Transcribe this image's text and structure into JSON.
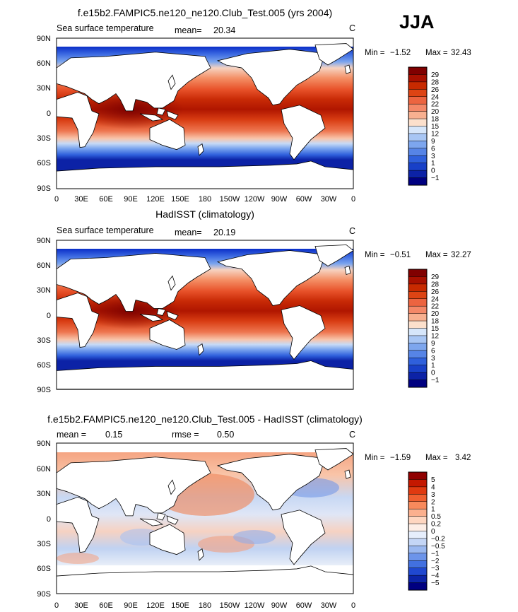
{
  "season": "JJA",
  "chart_data": [
    {
      "type": "heatmap",
      "title": "f.e15b2.FAMPIC5.ne120_ne120.Club_Test.005 (yrs 2004)",
      "left_label": "Sea surface temperature",
      "stat1_label": "mean=",
      "stat1_value": "20.34",
      "stat2_label": "",
      "stat2_value": "",
      "units": "C",
      "min_label": "Min =",
      "min_value": "−1.52",
      "max_label": "Max =",
      "max_value": "32.43",
      "x_ticks": [
        "0",
        "30E",
        "60E",
        "90E",
        "120E",
        "150E",
        "180",
        "150W",
        "120W",
        "90W",
        "60W",
        "30W",
        "0"
      ],
      "y_ticks": [
        "90N",
        "60N",
        "30N",
        "0",
        "30S",
        "60S",
        "90S"
      ],
      "colorbar_levels": [
        "29",
        "28",
        "26",
        "24",
        "22",
        "20",
        "18",
        "15",
        "12",
        "9",
        "6",
        "3",
        "1",
        "0",
        "−1"
      ],
      "colorbar_colors": [
        "#800000",
        "#a81000",
        "#c82a00",
        "#dd4414",
        "#ec6440",
        "#f48868",
        "#f8b090",
        "#fce0cc",
        "#d6e6fa",
        "#a8c6f4",
        "#7da6ee",
        "#5684e6",
        "#2f60dc",
        "#1840c8",
        "#0c22a6",
        "#000080"
      ]
    },
    {
      "type": "heatmap",
      "title": "HadISST (climatology)",
      "left_label": "Sea surface temperature",
      "stat1_label": "mean=",
      "stat1_value": "20.19",
      "stat2_label": "",
      "stat2_value": "",
      "units": "C",
      "min_label": "Min =",
      "min_value": "−0.51",
      "max_label": "Max =",
      "max_value": "32.27",
      "x_ticks": [],
      "y_ticks": [
        "90N",
        "60N",
        "30N",
        "0",
        "30S",
        "60S",
        "90S"
      ],
      "colorbar_levels": [
        "29",
        "28",
        "26",
        "24",
        "22",
        "20",
        "18",
        "15",
        "12",
        "9",
        "6",
        "3",
        "1",
        "0",
        "−1"
      ],
      "colorbar_colors": [
        "#800000",
        "#a81000",
        "#c82a00",
        "#dd4414",
        "#ec6440",
        "#f48868",
        "#f8b090",
        "#fce0cc",
        "#d6e6fa",
        "#a8c6f4",
        "#7da6ee",
        "#5684e6",
        "#2f60dc",
        "#1840c8",
        "#0c22a6",
        "#000080"
      ]
    },
    {
      "type": "heatmap",
      "title": "f.e15b2.FAMPIC5.ne120_ne120.Club_Test.005 - HadISST (climatology)",
      "left_label": "",
      "stat1_label": "mean =",
      "stat1_value": "0.15",
      "stat2_label": "rmse =",
      "stat2_value": "0.50",
      "units": "C",
      "min_label": "Min =",
      "min_value": "−1.59",
      "max_label": "Max =",
      "max_value": "3.42",
      "x_ticks": [
        "0",
        "30E",
        "60E",
        "90E",
        "120E",
        "150E",
        "180",
        "150W",
        "120W",
        "90W",
        "60W",
        "30W",
        "0"
      ],
      "y_ticks": [
        "90N",
        "60N",
        "30N",
        "0",
        "30S",
        "60S",
        "90S"
      ],
      "colorbar_levels": [
        "5",
        "4",
        "3",
        "2",
        "1",
        "0.5",
        "0.2",
        "0",
        "−0.2",
        "−0.5",
        "−1",
        "−2",
        "−3",
        "−4",
        "−5"
      ],
      "colorbar_colors": [
        "#900000",
        "#c41800",
        "#e03a10",
        "#f06030",
        "#f88a5c",
        "#fbb08e",
        "#fed6c0",
        "#fdeee6",
        "#e6eefc",
        "#c4d6f6",
        "#9ab8f0",
        "#6c94ea",
        "#4270e0",
        "#2048d0",
        "#0c24a8",
        "#000080"
      ]
    }
  ]
}
